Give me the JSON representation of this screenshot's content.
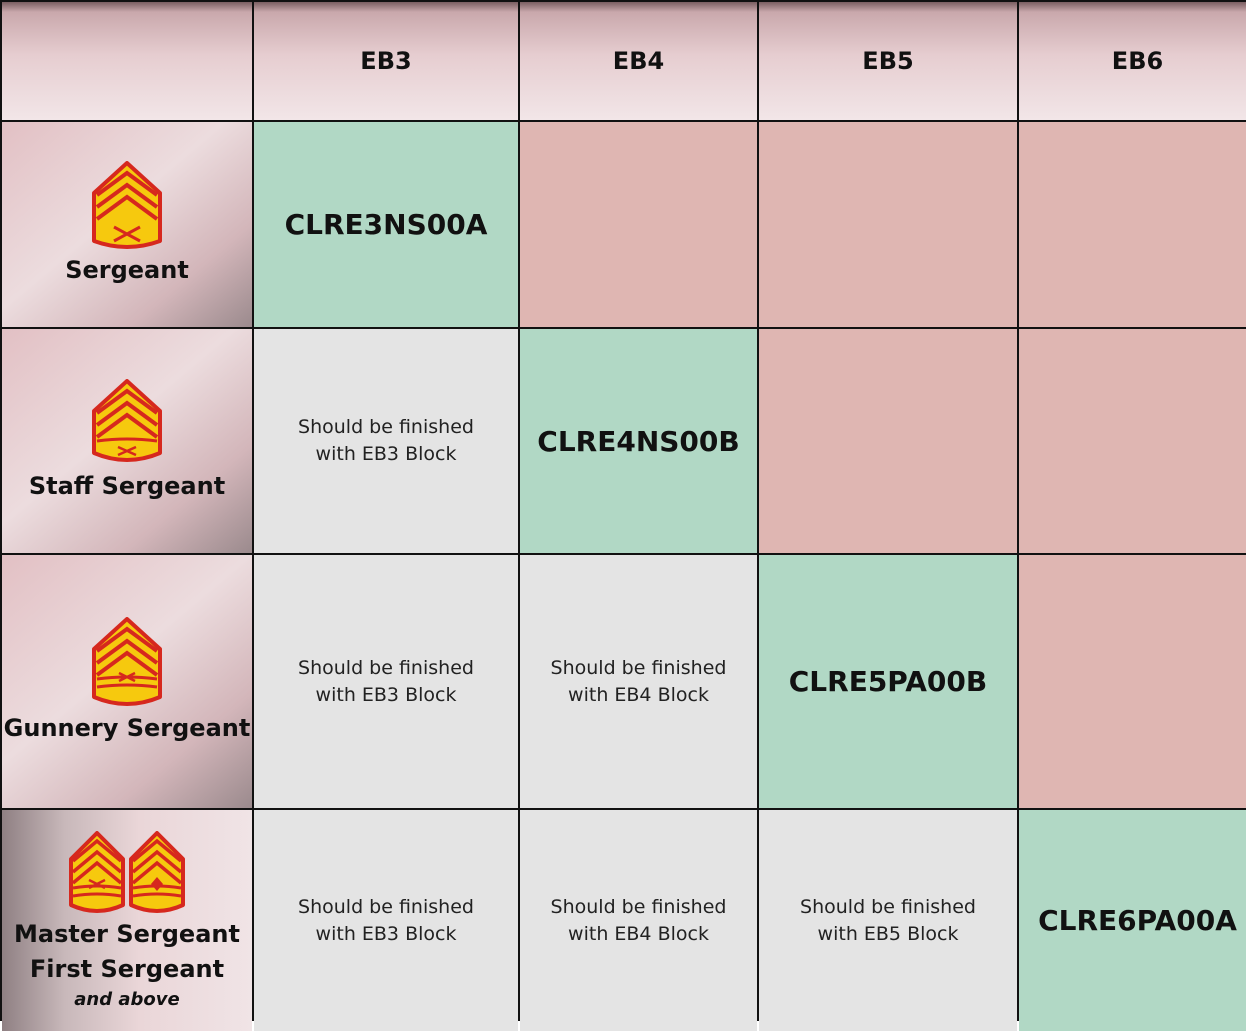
{
  "header": {
    "columns": [
      "EB3",
      "EB4",
      "EB5",
      "EB6"
    ]
  },
  "ranks": [
    {
      "label": "Sergeant",
      "icon": "sergeant-chevron-icon"
    },
    {
      "label": "Staff Sergeant",
      "icon": "staff-sergeant-chevron-icon"
    },
    {
      "label": "Gunnery Sergeant",
      "icon": "gunnery-sergeant-chevron-icon"
    },
    {
      "label_line1": "Master Sergeant",
      "label_line2": "First Sergeant",
      "sublabel": "and above",
      "icons": [
        "master-sergeant-chevron-icon",
        "first-sergeant-chevron-icon"
      ]
    }
  ],
  "cells": {
    "r1": {
      "eb3": "CLRE3NS00A"
    },
    "r2": {
      "eb3": "Should be finished with EB3 Block",
      "eb4": "CLRE4NS00B"
    },
    "r3": {
      "eb3": "Should be finished with EB3 Block",
      "eb4": "Should be finished with EB4 Block",
      "eb5": "CLRE5PA00B"
    },
    "r4": {
      "eb3": "Should be finished with EB3 Block",
      "eb4": "Should be finished with EB4 Block",
      "eb5": "Should be finished with EB5 Block",
      "eb6": "CLRE6PA00A"
    }
  },
  "colors": {
    "current": "#b1d8c5",
    "not_applicable": "#dfb6b2",
    "completed": "#e4e4e4",
    "chevron_fill": "#f6c90e",
    "chevron_border": "#d6281e"
  }
}
